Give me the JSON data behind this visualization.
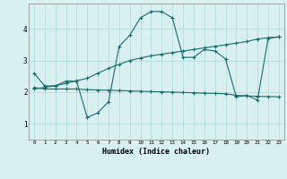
{
  "title": "",
  "xlabel": "Humidex (Indice chaleur)",
  "bg_color": "#d8f0f0",
  "line_color": "#1a6b6b",
  "grid_color": "#b0d8d8",
  "xlim": [
    -0.5,
    23.5
  ],
  "ylim": [
    0.5,
    4.8
  ],
  "xticks": [
    0,
    1,
    2,
    3,
    4,
    5,
    6,
    7,
    8,
    9,
    10,
    11,
    12,
    13,
    14,
    15,
    16,
    17,
    18,
    19,
    20,
    21,
    22,
    23
  ],
  "yticks": [
    1,
    2,
    3,
    4
  ],
  "line1_x": [
    0,
    1,
    2,
    3,
    4,
    5,
    6,
    7,
    8,
    9,
    10,
    11,
    12,
    13,
    14,
    15,
    16,
    17,
    18,
    19,
    20,
    21,
    22,
    23
  ],
  "line1_y": [
    2.6,
    2.2,
    2.2,
    2.35,
    2.35,
    1.2,
    1.35,
    1.7,
    3.45,
    3.8,
    4.35,
    4.55,
    4.55,
    4.35,
    3.1,
    3.1,
    3.35,
    3.3,
    3.05,
    1.85,
    1.9,
    1.75,
    3.7,
    3.75
  ],
  "line2_x": [
    0,
    1,
    2,
    3,
    4,
    5,
    6,
    7,
    8,
    9,
    10,
    11,
    12,
    13,
    14,
    15,
    16,
    17,
    18,
    19,
    20,
    21,
    22,
    23
  ],
  "line2_y": [
    2.15,
    2.1,
    2.1,
    2.1,
    2.1,
    2.08,
    2.07,
    2.06,
    2.05,
    2.04,
    2.03,
    2.02,
    2.01,
    2.0,
    1.99,
    1.98,
    1.97,
    1.96,
    1.95,
    1.9,
    1.88,
    1.87,
    1.86,
    1.85
  ],
  "line3_x": [
    0,
    1,
    2,
    3,
    4,
    5,
    6,
    7,
    8,
    9,
    10,
    11,
    12,
    13,
    14,
    15,
    16,
    17,
    18,
    19,
    20,
    21,
    22,
    23
  ],
  "line3_y": [
    2.1,
    2.15,
    2.2,
    2.28,
    2.36,
    2.44,
    2.6,
    2.75,
    2.88,
    3.0,
    3.08,
    3.15,
    3.2,
    3.25,
    3.3,
    3.35,
    3.4,
    3.45,
    3.5,
    3.55,
    3.6,
    3.68,
    3.72,
    3.75
  ]
}
